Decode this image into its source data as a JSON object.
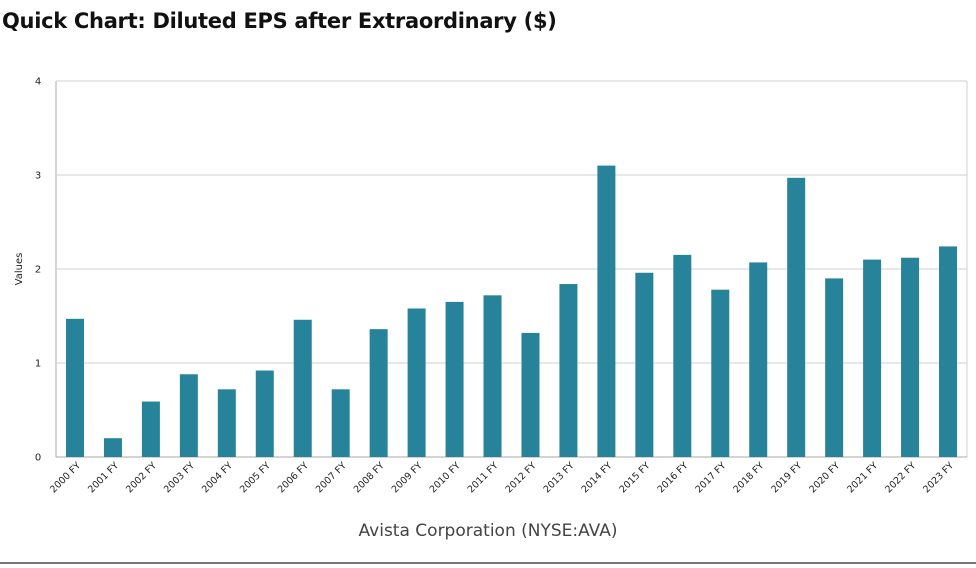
{
  "page": {
    "title": "Quick Chart: Diluted EPS after Extraordinary ($)",
    "subtitle": "Avista Corporation (NYSE:AVA)"
  },
  "colors": {
    "bar": "#26839A",
    "grid": "#d0d0d0",
    "axis": "#aaaaaa"
  },
  "chart_data": {
    "type": "bar",
    "title": "Quick Chart: Diluted EPS after Extraordinary ($)",
    "xlabel": "Avista Corporation (NYSE:AVA)",
    "ylabel": "Values",
    "ylim": [
      0,
      4
    ],
    "yticks": [
      0,
      1,
      2,
      3,
      4
    ],
    "grid": true,
    "categories": [
      "2000 FY",
      "2001 FY",
      "2002 FY",
      "2003 FY",
      "2004 FY",
      "2005 FY",
      "2006 FY",
      "2007 FY",
      "2008 FY",
      "2009 FY",
      "2010 FY",
      "2011 FY",
      "2012 FY",
      "2013 FY",
      "2014 FY",
      "2015 FY",
      "2016 FY",
      "2017 FY",
      "2018 FY",
      "2019 FY",
      "2020 FY",
      "2021 FY",
      "2022 FY",
      "2023 FY"
    ],
    "values": [
      1.47,
      0.2,
      0.59,
      0.88,
      0.72,
      0.92,
      1.46,
      0.72,
      1.36,
      1.58,
      1.65,
      1.72,
      1.32,
      1.84,
      3.1,
      1.96,
      2.15,
      1.78,
      2.07,
      2.97,
      1.9,
      2.1,
      2.12,
      2.24
    ]
  }
}
